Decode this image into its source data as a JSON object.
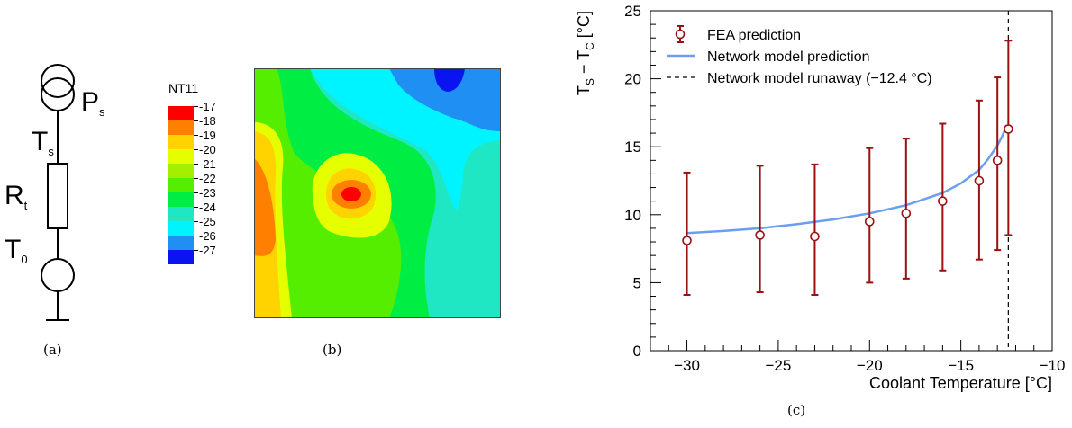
{
  "captions": {
    "a": "(a)",
    "b": "(b)",
    "c": "(c)"
  },
  "circuit": {
    "labels": {
      "p_main": "P",
      "p_sub": "s",
      "ts_main": "T",
      "ts_sub": "s",
      "rt_main": "R",
      "rt_sub": "t",
      "t0_main": "T",
      "t0_sub": "0"
    }
  },
  "contour": {
    "legend_title": "NT11",
    "levels": [
      {
        "label": "-17",
        "color": "#ff0000"
      },
      {
        "label": "-18",
        "color": "#ff7f00"
      },
      {
        "label": "-19",
        "color": "#ffd300"
      },
      {
        "label": "-20",
        "color": "#e6ff00"
      },
      {
        "label": "-21",
        "color": "#a6ee00"
      },
      {
        "label": "-22",
        "color": "#55ee00"
      },
      {
        "label": "-23",
        "color": "#00ee44"
      },
      {
        "label": "-24",
        "color": "#1fe7c4"
      },
      {
        "label": "-25",
        "color": "#00f4ff"
      },
      {
        "label": "-26",
        "color": "#1f8ff4"
      },
      {
        "label": "-27",
        "color": "#0a14f0"
      }
    ],
    "bottom_label": ""
  },
  "chart_data": {
    "type": "scatter",
    "xlabel": "Coolant Temperature [°C]",
    "ylabel": {
      "main": "T",
      "sub1": "S",
      "mid": " − T",
      "sub2": "C",
      "end": " [°C]"
    },
    "xlim": [
      -32,
      -10
    ],
    "ylim": [
      0,
      25
    ],
    "xticks": [
      -30,
      -25,
      -20,
      -15,
      -10
    ],
    "yticks": [
      0,
      5,
      10,
      15,
      20,
      25
    ],
    "legend_position": "top-left",
    "colors": {
      "fea": "#9b1010",
      "network": "#6a9ff0",
      "runaway": "#000000"
    },
    "series": [
      {
        "name": "FEA prediction",
        "kind": "points-with-errorbars",
        "x": [
          -30,
          -26,
          -23,
          -20,
          -18,
          -16,
          -14,
          -13,
          -12.4
        ],
        "y": [
          8.1,
          8.5,
          8.4,
          9.5,
          10.1,
          11.0,
          12.5,
          14.0,
          16.3
        ],
        "yerr_low": [
          4.0,
          4.2,
          4.3,
          4.5,
          4.8,
          5.1,
          5.8,
          6.6,
          7.8
        ],
        "yerr_high": [
          5.0,
          5.1,
          5.3,
          5.4,
          5.5,
          5.7,
          5.9,
          6.1,
          6.5
        ]
      },
      {
        "name": "Network model prediction",
        "kind": "line",
        "x": [
          -30,
          -28,
          -26,
          -24,
          -22,
          -20,
          -18,
          -16,
          -15,
          -14,
          -13.5,
          -13,
          -12.8,
          -12.6,
          -12.5
        ],
        "y": [
          8.65,
          8.8,
          9.0,
          9.3,
          9.65,
          10.1,
          10.7,
          11.6,
          12.3,
          13.3,
          14.1,
          15.1,
          15.6,
          16.2,
          16.6
        ]
      },
      {
        "name": "Network model runaway (−12.4 °C)",
        "kind": "vertical-dashed",
        "x": -12.4
      }
    ]
  }
}
